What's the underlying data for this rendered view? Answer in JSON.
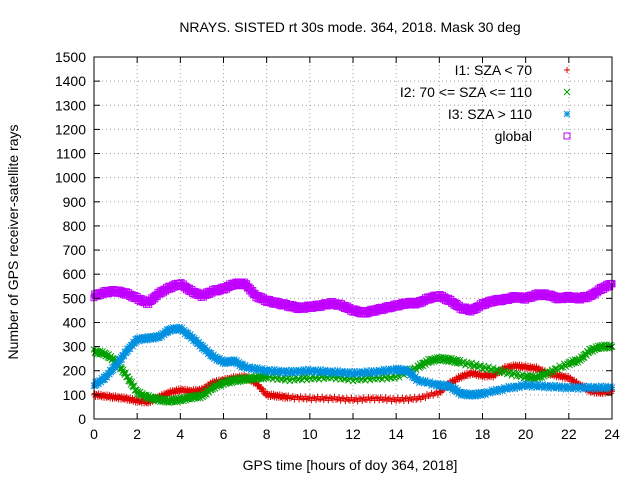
{
  "chart_data": {
    "type": "scatter",
    "title": "NRAYS. SISTED rt 30s mode. 364, 2018. Mask 30 deg",
    "xlabel": "GPS time [hours of doy 364, 2018]",
    "ylabel": "Number of GPS receiver-satellite rays",
    "xlim": [
      0,
      24
    ],
    "ylim": [
      0,
      1500
    ],
    "xticks": [
      0,
      2,
      4,
      6,
      8,
      10,
      12,
      14,
      16,
      18,
      20,
      22,
      24
    ],
    "yticks": [
      0,
      100,
      200,
      300,
      400,
      500,
      600,
      700,
      800,
      900,
      1000,
      1100,
      1200,
      1300,
      1400,
      1500
    ],
    "grid": true,
    "legend_position": "top-right",
    "series": [
      {
        "name": "I1: SZA < 70",
        "color": "#e00000",
        "marker": "plus",
        "points": [
          [
            0,
            100
          ],
          [
            0.5,
            95
          ],
          [
            1,
            90
          ],
          [
            1.5,
            85
          ],
          [
            2,
            75
          ],
          [
            2.5,
            70
          ],
          [
            3,
            90
          ],
          [
            3.5,
            110
          ],
          [
            4,
            120
          ],
          [
            4.5,
            115
          ],
          [
            5,
            120
          ],
          [
            5.5,
            150
          ],
          [
            6,
            160
          ],
          [
            6.5,
            170
          ],
          [
            7,
            175
          ],
          [
            7.5,
            150
          ],
          [
            8,
            100
          ],
          [
            8.5,
            95
          ],
          [
            9,
            90
          ],
          [
            10,
            85
          ],
          [
            11,
            85
          ],
          [
            12,
            80
          ],
          [
            13,
            85
          ],
          [
            14,
            80
          ],
          [
            15,
            85
          ],
          [
            16,
            110
          ],
          [
            16.5,
            150
          ],
          [
            17,
            175
          ],
          [
            17.5,
            190
          ],
          [
            18,
            180
          ],
          [
            18.5,
            180
          ],
          [
            19,
            210
          ],
          [
            19.5,
            220
          ],
          [
            20,
            215
          ],
          [
            20.5,
            210
          ],
          [
            21,
            190
          ],
          [
            21.5,
            180
          ],
          [
            22,
            170
          ],
          [
            22.5,
            140
          ],
          [
            23,
            115
          ],
          [
            23.5,
            110
          ],
          [
            24,
            115
          ]
        ]
      },
      {
        "name": "I2: 70 <= SZA <= 110",
        "color": "#00a000",
        "marker": "cross",
        "points": [
          [
            0,
            280
          ],
          [
            0.5,
            270
          ],
          [
            1,
            240
          ],
          [
            1.5,
            180
          ],
          [
            2,
            110
          ],
          [
            2.5,
            90
          ],
          [
            3,
            80
          ],
          [
            3.5,
            75
          ],
          [
            4,
            80
          ],
          [
            4.5,
            90
          ],
          [
            5,
            95
          ],
          [
            5.5,
            130
          ],
          [
            6,
            150
          ],
          [
            6.5,
            160
          ],
          [
            7,
            165
          ],
          [
            7.5,
            170
          ],
          [
            8,
            175
          ],
          [
            9,
            165
          ],
          [
            10,
            170
          ],
          [
            11,
            175
          ],
          [
            12,
            165
          ],
          [
            13,
            170
          ],
          [
            14,
            175
          ],
          [
            15,
            215
          ],
          [
            15.5,
            240
          ],
          [
            16,
            250
          ],
          [
            16.5,
            245
          ],
          [
            17,
            235
          ],
          [
            18,
            215
          ],
          [
            19,
            195
          ],
          [
            20,
            175
          ],
          [
            20.5,
            170
          ],
          [
            21,
            190
          ],
          [
            22,
            230
          ],
          [
            22.5,
            245
          ],
          [
            23,
            285
          ],
          [
            23.5,
            300
          ],
          [
            24,
            300
          ]
        ]
      },
      {
        "name": "I3: SZA > 110",
        "color": "#0090e0",
        "marker": "star",
        "points": [
          [
            0,
            140
          ],
          [
            0.5,
            170
          ],
          [
            1,
            220
          ],
          [
            1.5,
            280
          ],
          [
            2,
            330
          ],
          [
            2.5,
            335
          ],
          [
            3,
            340
          ],
          [
            3.5,
            370
          ],
          [
            4,
            375
          ],
          [
            4.5,
            340
          ],
          [
            5,
            300
          ],
          [
            5.5,
            260
          ],
          [
            6,
            235
          ],
          [
            6.5,
            240
          ],
          [
            7,
            215
          ],
          [
            8,
            200
          ],
          [
            9,
            195
          ],
          [
            10,
            200
          ],
          [
            11,
            195
          ],
          [
            12,
            190
          ],
          [
            13,
            195
          ],
          [
            14,
            205
          ],
          [
            14.5,
            200
          ],
          [
            15,
            160
          ],
          [
            16,
            140
          ],
          [
            16.5,
            135
          ],
          [
            17,
            105
          ],
          [
            17.5,
            100
          ],
          [
            18,
            105
          ],
          [
            19,
            125
          ],
          [
            20,
            140
          ],
          [
            21,
            135
          ],
          [
            22,
            130
          ],
          [
            23,
            130
          ],
          [
            24,
            130
          ]
        ]
      },
      {
        "name": "global",
        "color": "#c000ff",
        "marker": "square",
        "points": [
          [
            0,
            510
          ],
          [
            0.5,
            525
          ],
          [
            1,
            530
          ],
          [
            1.5,
            520
          ],
          [
            2,
            500
          ],
          [
            2.5,
            480
          ],
          [
            3,
            520
          ],
          [
            3.5,
            545
          ],
          [
            4,
            560
          ],
          [
            4.5,
            530
          ],
          [
            5,
            510
          ],
          [
            5.5,
            530
          ],
          [
            6,
            540
          ],
          [
            6.5,
            560
          ],
          [
            7,
            560
          ],
          [
            7.5,
            510
          ],
          [
            8,
            490
          ],
          [
            8.5,
            480
          ],
          [
            9,
            470
          ],
          [
            9.5,
            460
          ],
          [
            10,
            465
          ],
          [
            10.5,
            470
          ],
          [
            11,
            480
          ],
          [
            11.5,
            470
          ],
          [
            12,
            450
          ],
          [
            12.5,
            440
          ],
          [
            13,
            450
          ],
          [
            13.5,
            460
          ],
          [
            14,
            470
          ],
          [
            14.5,
            480
          ],
          [
            15,
            480
          ],
          [
            15.5,
            500
          ],
          [
            16,
            510
          ],
          [
            16.5,
            490
          ],
          [
            17,
            460
          ],
          [
            17.5,
            450
          ],
          [
            18,
            475
          ],
          [
            18.5,
            490
          ],
          [
            19,
            495
          ],
          [
            19.5,
            505
          ],
          [
            20,
            500
          ],
          [
            20.5,
            515
          ],
          [
            21,
            515
          ],
          [
            21.5,
            500
          ],
          [
            22,
            505
          ],
          [
            22.5,
            500
          ],
          [
            23,
            510
          ],
          [
            23.5,
            540
          ],
          [
            24,
            560
          ]
        ]
      }
    ]
  }
}
